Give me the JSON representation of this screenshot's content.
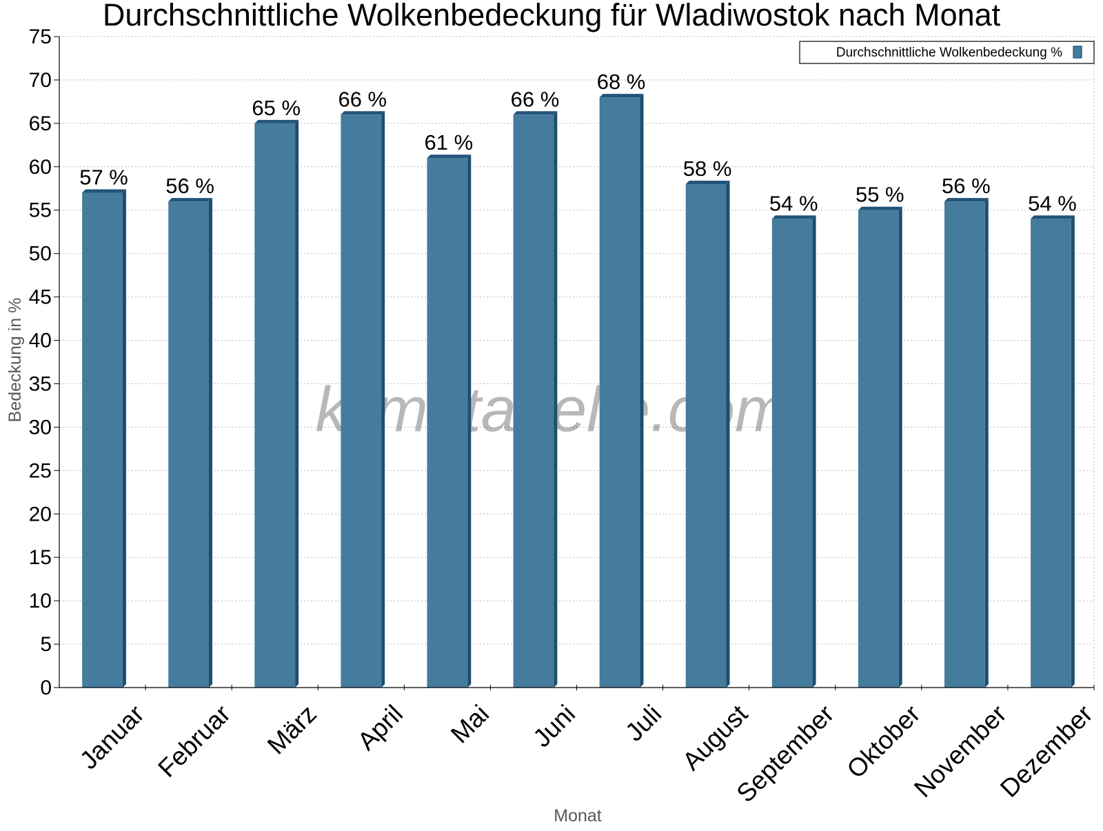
{
  "chart_data": {
    "type": "bar",
    "title": "Durchschnittliche Wolkenbedeckung für Wladiwostok nach Monat",
    "xlabel": "Monat",
    "ylabel": "Bedeckung in %",
    "ylim": [
      0,
      75
    ],
    "ytick_step": 5,
    "grid": true,
    "legend": "top-right",
    "categories": [
      "Januar",
      "Februar",
      "März",
      "April",
      "Mai",
      "Juni",
      "Juli",
      "August",
      "September",
      "Oktober",
      "November",
      "Dezember"
    ],
    "series": [
      {
        "name": "Durchschnittliche Wolkenbedeckung %",
        "values": [
          57,
          56,
          65,
          66,
          61,
          66,
          68,
          58,
          54,
          55,
          56,
          54
        ],
        "labels": [
          "57 %",
          "56 %",
          "65 %",
          "66 %",
          "61 %",
          "66 %",
          "68 %",
          "58 %",
          "54 %",
          "55 %",
          "56 %",
          "54 %"
        ],
        "color": "#457b9d",
        "color_side": "#1d4e6e",
        "color_top": "#23547a"
      }
    ],
    "watermark": "klimatabelle.com"
  }
}
